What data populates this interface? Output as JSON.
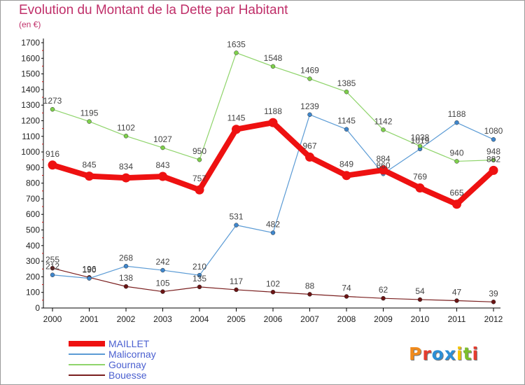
{
  "header": {
    "title": "Evolution du Montant de la Dette par Habitant",
    "unit": "(en €)"
  },
  "logo": {
    "text": "Proxiti",
    "colors": [
      "#f08a1c",
      "#e53c2e",
      "#2c8fd6",
      "#2c8fd6",
      "#f5c400",
      "#7cbf2b",
      "#e53c2e"
    ]
  },
  "chart_data": {
    "type": "line",
    "title": "Evolution du Montant de la Dette par Habitant",
    "ylabel": "(en €)",
    "xlabel": "",
    "x": [
      "2000",
      "2001",
      "2002",
      "2003",
      "2004",
      "2005",
      "2006",
      "2007",
      "2008",
      "2009",
      "2010",
      "2011",
      "2012"
    ],
    "ylim": [
      0,
      1700
    ],
    "yticks": [
      0,
      100,
      200,
      300,
      400,
      500,
      600,
      700,
      800,
      900,
      1000,
      1100,
      1200,
      1300,
      1400,
      1500,
      1600,
      1700
    ],
    "grid": false,
    "legend_position": "bottom-left",
    "series": [
      {
        "name": "Bouesse",
        "color": "#7a1f1f",
        "width": 1.2,
        "marker_fill": "#6b1414",
        "values": [
          255,
          196,
          138,
          105,
          135,
          117,
          102,
          88,
          74,
          62,
          54,
          47,
          39
        ]
      },
      {
        "name": "Malicornay",
        "color": "#5b9bd5",
        "width": 1.2,
        "marker_fill": "#3f86cc",
        "values": [
          212,
          190,
          268,
          242,
          210,
          531,
          482,
          1239,
          1145,
          860,
          1019,
          1188,
          1080
        ]
      },
      {
        "name": "Gournay",
        "color": "#8fd46b",
        "width": 1.2,
        "marker_fill": "#7ed04b",
        "values": [
          1273,
          1195,
          1102,
          1027,
          950,
          1635,
          1548,
          1469,
          1385,
          1142,
          1038,
          940,
          948
        ]
      },
      {
        "name": "MAILLET",
        "color": "#ee1111",
        "width": 8,
        "marker_fill": "#ee1111",
        "values": [
          916,
          845,
          834,
          843,
          757,
          1145,
          1188,
          967,
          849,
          884,
          769,
          665,
          882
        ]
      }
    ]
  },
  "legend": {
    "items": [
      {
        "label": "MAILLET",
        "color": "#ee1111",
        "thickness": 8
      },
      {
        "label": "Malicornay",
        "color": "#5b9bd5",
        "thickness": 2
      },
      {
        "label": "Gournay",
        "color": "#8fd46b",
        "thickness": 2
      },
      {
        "label": "Bouesse",
        "color": "#7a1f1f",
        "thickness": 2
      }
    ]
  }
}
